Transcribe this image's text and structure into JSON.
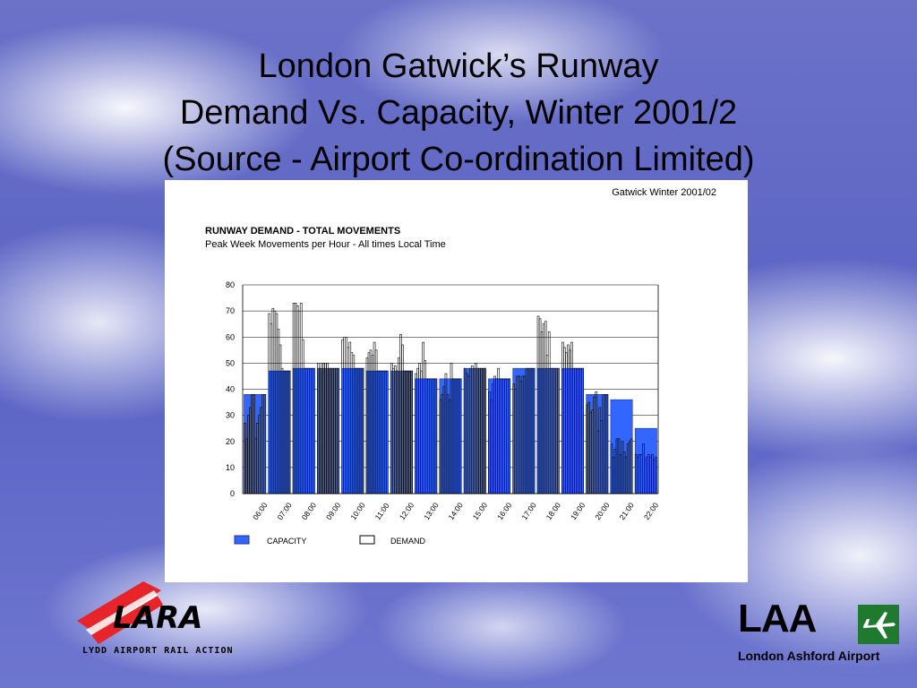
{
  "slide": {
    "title_lines": [
      "London Gatwick’s Runway",
      "Demand Vs. Capacity, Winter 2001/2",
      "(Source - Airport Co-ordination Limited)"
    ]
  },
  "logos": {
    "left_text": "LYDD AIRPORT RAIL ACTION",
    "left_wordmark": "LARA",
    "right_letters": "LAA",
    "right_name": "London Ashford Airport"
  },
  "colors": {
    "capacity": "#3366ff",
    "capacity_stroke": "#1d2f9a",
    "demand": "#ffffff",
    "demand_stroke": "#000000",
    "laa_green": "#1f7a2f",
    "lyd_red": "#e8242b"
  },
  "chart_data": {
    "type": "bar",
    "corner_label": "Gatwick Winter 2001/02",
    "title": "RUNWAY DEMAND  -  TOTAL MOVEMENTS",
    "subtitle": "Peak Week Movements per Hour  -  All times Local Time",
    "ylim": [
      0,
      80
    ],
    "yticks": [
      0,
      10,
      20,
      30,
      40,
      50,
      60,
      70,
      80
    ],
    "grid": true,
    "legend": [
      "CAPACITY",
      "DEMAND"
    ],
    "legend_position": "bottom-left",
    "categories": [
      "06:00",
      "07:00",
      "08:00",
      "09:00",
      "10:00",
      "11:00",
      "12:00",
      "13:00",
      "14:00",
      "15:00",
      "16:00",
      "17:00",
      "18:00",
      "19:00",
      "20:00",
      "21:00",
      "22:00"
    ],
    "series": [
      {
        "name": "CAPACITY",
        "values": [
          38,
          47,
          48,
          48,
          48,
          47,
          47,
          44,
          44,
          48,
          44,
          48,
          48,
          48,
          38,
          36,
          25
        ]
      },
      {
        "name": "DEMAND",
        "note_units": "movements per 5-minute rolling hour window, 12 per category",
        "values": [
          [
            27,
            21,
            30,
            33,
            38,
            38,
            21,
            27,
            30,
            33,
            38,
            38
          ],
          [
            69,
            65,
            71,
            70,
            69,
            63,
            57,
            48,
            47,
            47,
            47,
            47
          ],
          [
            73,
            73,
            72,
            70,
            73,
            59,
            48,
            48,
            48,
            48,
            48,
            48
          ],
          [
            50,
            48,
            50,
            50,
            50,
            50,
            48,
            48,
            48,
            48,
            48,
            48
          ],
          [
            59,
            60,
            60,
            56,
            58,
            54,
            53,
            48,
            48,
            48,
            48,
            48
          ],
          [
            52,
            54,
            55,
            53,
            58,
            55,
            47,
            47,
            47,
            47,
            47,
            47
          ],
          [
            50,
            48,
            49,
            47,
            52,
            61,
            57,
            47,
            47,
            47,
            47,
            47
          ],
          [
            46,
            48,
            50,
            47,
            58,
            51,
            44,
            44,
            44,
            44,
            44,
            44
          ],
          [
            36,
            38,
            41,
            46,
            38,
            36,
            50,
            44,
            44,
            44,
            44,
            44
          ],
          [
            48,
            46,
            45,
            48,
            49,
            48,
            50,
            48,
            48,
            48,
            48,
            48
          ],
          [
            39,
            36,
            42,
            45,
            44,
            48,
            44,
            44,
            44,
            44,
            44,
            44
          ],
          [
            42,
            40,
            45,
            45,
            43,
            45,
            45,
            48,
            48,
            48,
            48,
            48
          ],
          [
            68,
            67,
            62,
            65,
            66,
            53,
            62,
            48,
            48,
            48,
            48,
            48
          ],
          [
            58,
            56,
            54,
            57,
            55,
            58,
            48,
            48,
            48,
            48,
            48,
            48
          ],
          [
            34,
            35,
            31,
            32,
            37,
            39,
            24,
            33,
            28,
            38,
            38,
            38
          ],
          [
            19,
            14,
            17,
            21,
            21,
            15,
            20,
            16,
            14,
            19,
            20,
            21
          ],
          [
            15,
            14,
            15,
            15,
            19,
            13,
            14,
            15,
            14,
            15,
            13,
            14
          ]
        ]
      }
    ]
  }
}
